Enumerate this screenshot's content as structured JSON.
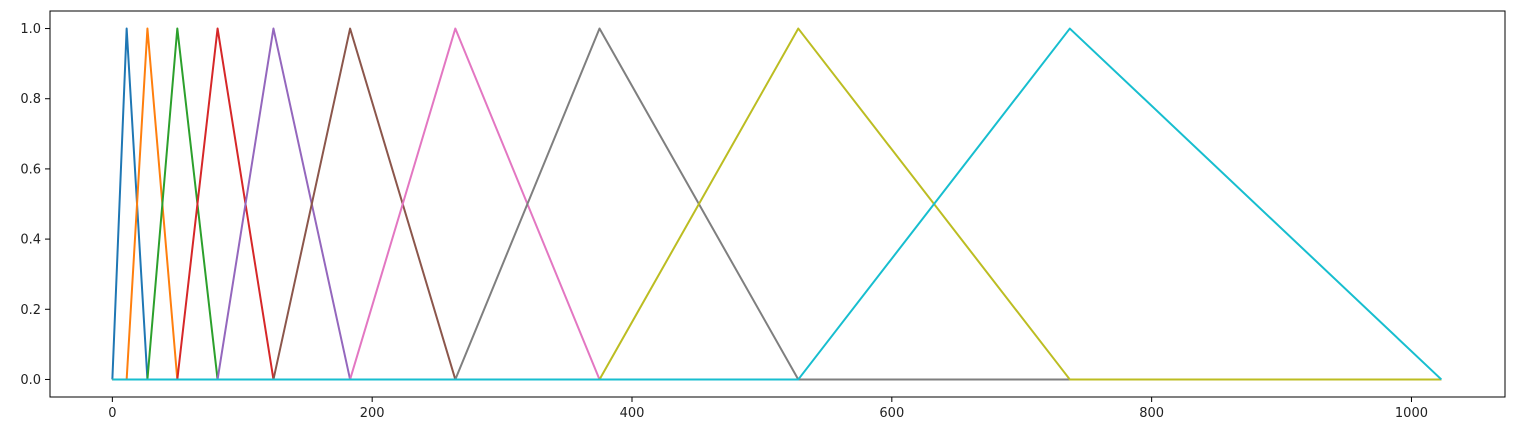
{
  "chart_data": {
    "type": "line",
    "title": "",
    "xlabel": "",
    "ylabel": "",
    "xlim": [
      -48,
      1072
    ],
    "ylim": [
      -0.05,
      1.05
    ],
    "grid": false,
    "legend": "none",
    "x_ticks": [
      0,
      200,
      400,
      600,
      800,
      1000
    ],
    "x_tick_labels": [
      "0",
      "200",
      "400",
      "600",
      "800",
      "1000"
    ],
    "y_ticks": [
      0.0,
      0.2,
      0.4,
      0.6,
      0.8,
      1.0
    ],
    "y_tick_labels": [
      "0.0",
      "0.2",
      "0.4",
      "0.6",
      "0.8",
      "1.0"
    ],
    "x_range": [
      0,
      1023
    ],
    "series": [
      {
        "color": "#1f77b4",
        "points": [
          [
            0,
            0
          ],
          [
            11,
            1
          ],
          [
            27,
            0
          ]
        ]
      },
      {
        "color": "#ff7f0e",
        "points": [
          [
            11,
            0
          ],
          [
            27,
            1
          ],
          [
            50,
            0
          ]
        ]
      },
      {
        "color": "#2ca02c",
        "points": [
          [
            27,
            0
          ],
          [
            50,
            1
          ],
          [
            81,
            0
          ]
        ]
      },
      {
        "color": "#d62728",
        "points": [
          [
            50,
            0
          ],
          [
            81,
            1
          ],
          [
            124,
            0
          ]
        ]
      },
      {
        "color": "#9467bd",
        "points": [
          [
            81,
            0
          ],
          [
            124,
            1
          ],
          [
            183,
            0
          ]
        ]
      },
      {
        "color": "#8c564b",
        "points": [
          [
            124,
            0
          ],
          [
            183,
            1
          ],
          [
            264,
            0
          ]
        ]
      },
      {
        "color": "#e377c2",
        "points": [
          [
            183,
            0
          ],
          [
            264,
            1
          ],
          [
            375,
            0
          ]
        ]
      },
      {
        "color": "#7f7f7f",
        "points": [
          [
            264,
            0
          ],
          [
            375,
            1
          ],
          [
            528,
            0
          ]
        ]
      },
      {
        "color": "#bcbd22",
        "points": [
          [
            375,
            0
          ],
          [
            528,
            1
          ],
          [
            737,
            0
          ]
        ]
      },
      {
        "color": "#17becf",
        "points": [
          [
            528,
            0
          ],
          [
            737,
            1
          ],
          [
            1023,
            0
          ]
        ]
      }
    ]
  }
}
